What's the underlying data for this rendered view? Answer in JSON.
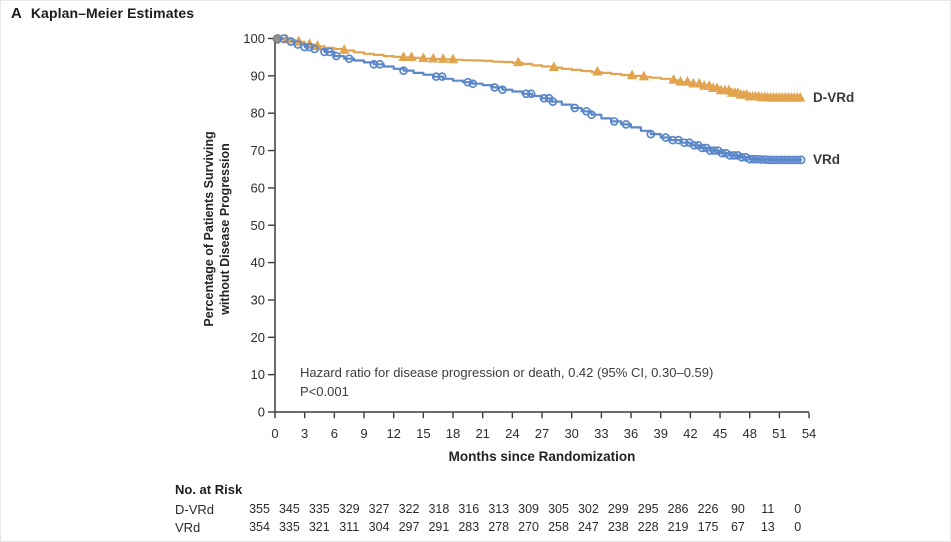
{
  "panel": {
    "letter": "A",
    "title": "Kaplan–Meier Estimates"
  },
  "annotation": {
    "line1": "Hazard ratio for disease progression or death, 0.42 (95% CI, 0.30–0.59)",
    "line2": "P<0.001"
  },
  "chart_data": {
    "type": "line",
    "subtype": "kaplan-meier-step",
    "title": "Kaplan–Meier Estimates",
    "xlabel": "Months since Randomization",
    "ylabel": "Percentage of Patients Surviving without Disease Progression",
    "ylabel_line1": "Percentage of Patients Surviving",
    "ylabel_line2": "without Disease Progression",
    "xlim": [
      0,
      54
    ],
    "ylim": [
      0,
      100
    ],
    "x_ticks": [
      0,
      3,
      6,
      9,
      12,
      15,
      18,
      21,
      24,
      27,
      30,
      33,
      36,
      39,
      42,
      45,
      48,
      51,
      54
    ],
    "y_ticks": [
      0,
      10,
      20,
      30,
      40,
      50,
      60,
      70,
      80,
      90,
      100
    ],
    "grid": false,
    "legend_position": "right-of-curve-ends",
    "x_start": 0,
    "x_step": 1,
    "end_month": 53.3,
    "axis_color": "#3a3a3a",
    "start_marker_color": "#8F8F8F",
    "series": [
      {
        "name": "D-VRd",
        "color": "#E2A44F",
        "marker": "triangle",
        "values": [
          100,
          99.6,
          99.1,
          98.4,
          97.9,
          97.5,
          97.2,
          96.8,
          96.3,
          95.9,
          95.6,
          95.3,
          95.1,
          94.9,
          94.8,
          94.6,
          94.5,
          94.4,
          94.3,
          94.2,
          94.1,
          94.0,
          93.8,
          93.7,
          93.5,
          93.2,
          92.8,
          92.5,
          92.2,
          91.9,
          91.6,
          91.3,
          91.0,
          90.8,
          90.5,
          90.2,
          90.0,
          89.7,
          89.5,
          89.2,
          88.8,
          88.3,
          87.8,
          87.2,
          86.6,
          86.0,
          85.3,
          84.8,
          84.3,
          84.1,
          84.0,
          84.0,
          84.0,
          84.0
        ],
        "censor_months": [
          1.2,
          2.4,
          3.5,
          4.3,
          7.0,
          13.0,
          13.8,
          15.0,
          16.0,
          17.0,
          18.0,
          24.6,
          28.2,
          32.6,
          36.1,
          37.3,
          40.3,
          41.0,
          41.7,
          42.3,
          42.9,
          43.4,
          43.9,
          44.3,
          44.7,
          45.1,
          45.5,
          45.9,
          46.2,
          46.5,
          46.8,
          47.1,
          47.4,
          47.7,
          48.0,
          48.3,
          48.6,
          48.9,
          49.2,
          49.5,
          49.8,
          50.1,
          50.4,
          50.7,
          51.0,
          51.3,
          51.6,
          51.9,
          52.2,
          52.5,
          52.8,
          53.1
        ]
      },
      {
        "name": "VRd",
        "color": "#5B87C8",
        "marker": "circle",
        "values": [
          100,
          99.2,
          98.4,
          97.7,
          97.2,
          96.4,
          95.3,
          94.6,
          94.1,
          93.6,
          93.1,
          92.5,
          91.9,
          91.4,
          90.8,
          90.3,
          89.8,
          89.2,
          88.7,
          88.3,
          87.9,
          87.5,
          86.9,
          86.3,
          85.8,
          85.2,
          84.6,
          84.0,
          83.1,
          82.3,
          81.4,
          80.5,
          79.6,
          78.6,
          77.8,
          77.0,
          76.2,
          75.3,
          74.4,
          73.5,
          72.8,
          72.1,
          71.4,
          70.7,
          70.0,
          69.3,
          68.7,
          68.2,
          67.7,
          67.6,
          67.5,
          67.5,
          67.5,
          67.5
        ],
        "censor_months": [
          0.9,
          1.6,
          2.3,
          3.0,
          3.5,
          4.0,
          5.0,
          5.5,
          6.2,
          7.5,
          10.0,
          10.6,
          13.0,
          16.3,
          16.9,
          19.5,
          20.0,
          22.2,
          23.0,
          25.4,
          25.9,
          27.2,
          27.7,
          28.1,
          30.3,
          31.5,
          32.0,
          34.3,
          35.5,
          38.0,
          39.5,
          40.2,
          40.8,
          41.4,
          41.9,
          42.4,
          42.8,
          43.2,
          43.6,
          44.0,
          44.4,
          44.8,
          45.2,
          45.6,
          46.0,
          46.4,
          46.8,
          47.2,
          47.6,
          48.0,
          48.4,
          48.8,
          49.2,
          49.6,
          50.0,
          50.4,
          50.8,
          51.2,
          51.6,
          52.0,
          52.4,
          52.8,
          53.2
        ]
      }
    ]
  },
  "risk_table": {
    "header": "No. at Risk",
    "rows": [
      {
        "label": "D-VRd",
        "counts": [
          355,
          345,
          335,
          329,
          327,
          322,
          318,
          316,
          313,
          309,
          305,
          302,
          299,
          295,
          286,
          226,
          90,
          11,
          0
        ]
      },
      {
        "label": "VRd",
        "counts": [
          354,
          335,
          321,
          311,
          304,
          297,
          291,
          283,
          278,
          270,
          258,
          247,
          238,
          228,
          219,
          175,
          67,
          13,
          0
        ]
      }
    ]
  }
}
